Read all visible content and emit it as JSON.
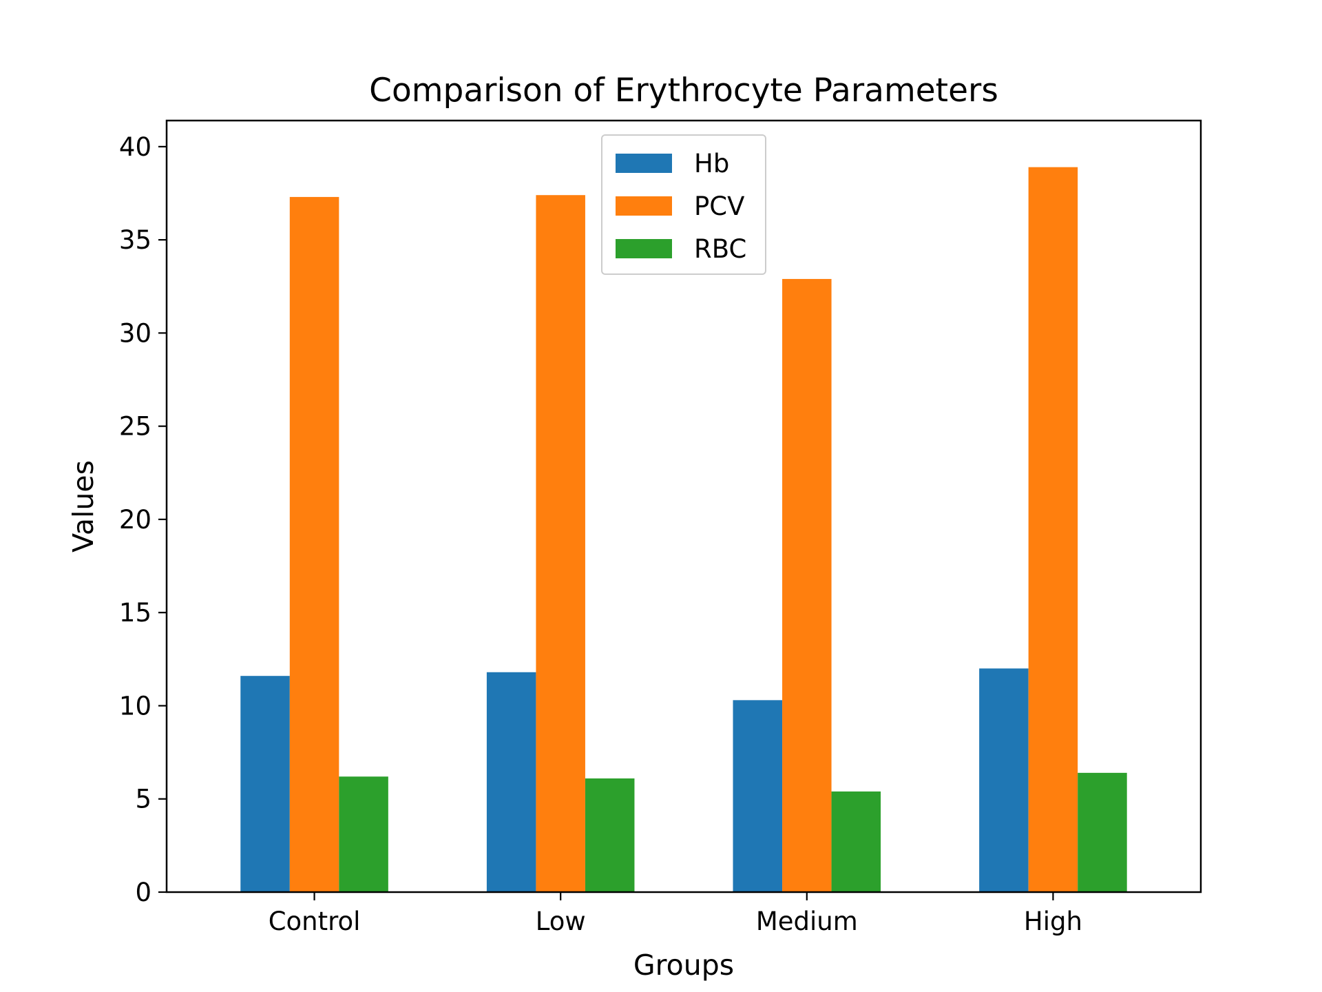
{
  "chart_data": {
    "type": "bar",
    "title": "Comparison of Erythrocyte Parameters",
    "xlabel": "Groups",
    "ylabel": "Values",
    "categories": [
      "Control",
      "Low",
      "Medium",
      "High"
    ],
    "series": [
      {
        "name": "Hb",
        "color": "#1f77b4",
        "values": [
          11.6,
          11.8,
          10.3,
          12.0
        ]
      },
      {
        "name": "PCV",
        "color": "#ff7f0e",
        "values": [
          37.3,
          37.4,
          32.9,
          38.9
        ]
      },
      {
        "name": "RBC",
        "color": "#2ca02c",
        "values": [
          6.2,
          6.1,
          5.4,
          6.4
        ]
      }
    ],
    "ylim": [
      0,
      41.4
    ],
    "yticks": [
      0,
      5,
      10,
      15,
      20,
      25,
      30,
      35,
      40
    ],
    "legend_position": "upper-center",
    "grid": false
  }
}
